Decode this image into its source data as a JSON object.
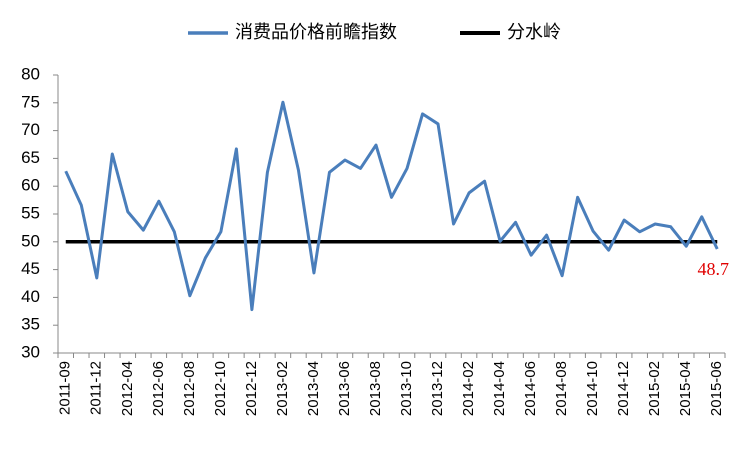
{
  "chart_data": {
    "type": "line",
    "categories": [
      "2011-09",
      null,
      "2011-12",
      null,
      "2012-04",
      null,
      "2012-06",
      null,
      "2012-08",
      null,
      "2012-10",
      null,
      "2012-12",
      null,
      "2013-02",
      null,
      "2013-04",
      null,
      "2013-06",
      null,
      "2013-08",
      null,
      "2013-10",
      null,
      "2013-12",
      null,
      "2014-02",
      null,
      "2014-04",
      null,
      "2014-06",
      null,
      "2014-08",
      null,
      "2014-10",
      null,
      "2014-12",
      null,
      "2015-02",
      null,
      "2015-04",
      null,
      "2015-06"
    ],
    "series": [
      {
        "name": "消费品价格前瞻指数",
        "color": "#4a7ebb",
        "values": [
          62.7,
          56.6,
          43.5,
          65.8,
          55.4,
          52.1,
          57.3,
          51.8,
          40.3,
          47.1,
          51.8,
          66.7,
          37.8,
          62.5,
          75.1,
          62.9,
          44.4,
          62.5,
          64.7,
          63.2,
          67.4,
          58.0,
          63.2,
          73.0,
          71.2,
          53.2,
          58.8,
          60.9,
          50.1,
          53.5,
          47.6,
          51.2,
          43.9,
          58.0,
          51.9,
          48.5,
          53.9,
          51.8,
          53.2,
          52.7,
          49.2,
          54.5,
          48.7
        ]
      },
      {
        "name": "分水岭",
        "color": "#000000",
        "values": [
          50,
          50,
          50,
          50,
          50,
          50,
          50,
          50,
          50,
          50,
          50,
          50,
          50,
          50,
          50,
          50,
          50,
          50,
          50,
          50,
          50,
          50,
          50,
          50,
          50,
          50,
          50,
          50,
          50,
          50,
          50,
          50,
          50,
          50,
          50,
          50,
          50,
          50,
          50,
          50,
          50,
          50,
          50
        ]
      }
    ],
    "label_color": "#e00000",
    "ylim": [
      30,
      80
    ],
    "yticks": [
      30,
      35,
      40,
      45,
      50,
      55,
      60,
      65,
      70,
      75,
      80
    ],
    "grid": false
  }
}
